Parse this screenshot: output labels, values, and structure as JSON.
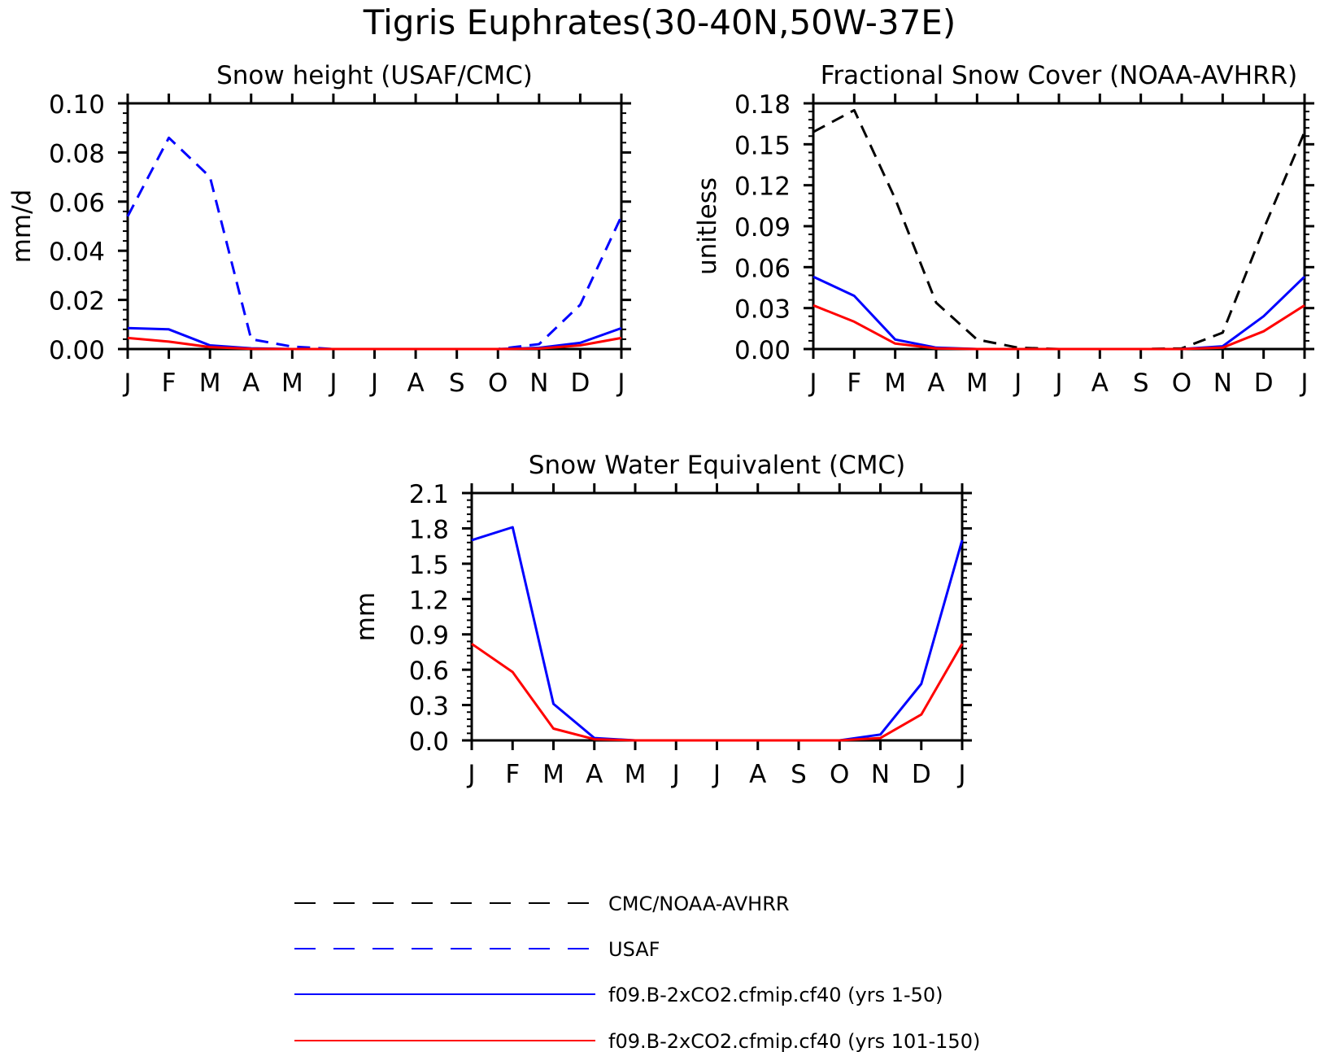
{
  "figure": {
    "title": "Tigris Euphrates(30-40N,50W-37E)"
  },
  "months": [
    "J",
    "F",
    "M",
    "A",
    "M",
    "J",
    "J",
    "A",
    "S",
    "O",
    "N",
    "D",
    "J"
  ],
  "colors": {
    "obs_cmc_avhrr": "#000000",
    "obs_usaf": "#0000ff",
    "model_early": "#0000ff",
    "model_late": "#ff0000"
  },
  "legend": [
    {
      "label": "CMC/NOAA-AVHRR",
      "color": "#000000",
      "dash": true
    },
    {
      "label": "USAF",
      "color": "#0000ff",
      "dash": true
    },
    {
      "label": "f09.B-2xCO2.cfmip.cf40 (yrs 1-50)",
      "color": "#0000ff",
      "dash": false
    },
    {
      "label": "f09.B-2xCO2.cfmip.cf40 (yrs 101-150)",
      "color": "#ff0000",
      "dash": false
    }
  ],
  "chart_data": [
    {
      "type": "line",
      "title": "Snow height (USAF/CMC)",
      "ylabel": "mm/d",
      "xlabel": "",
      "categories": [
        "J",
        "F",
        "M",
        "A",
        "M",
        "J",
        "J",
        "A",
        "S",
        "O",
        "N",
        "D",
        "J"
      ],
      "ylim": [
        0,
        0.1
      ],
      "yticks": [
        "0.00",
        "0.02",
        "0.04",
        "0.06",
        "0.08",
        "0.10"
      ],
      "series": [
        {
          "name": "USAF",
          "color": "#0000ff",
          "dash": true,
          "values": [
            0.054,
            0.086,
            0.07,
            0.004,
            0.001,
            0.0,
            0.0,
            0.0,
            0.0,
            0.0,
            0.002,
            0.018,
            0.054
          ]
        },
        {
          "name": "f09.B-2xCO2.cfmip.cf40 (yrs 1-50)",
          "color": "#0000ff",
          "dash": false,
          "values": [
            0.0085,
            0.008,
            0.0015,
            0.0003,
            0.0,
            0.0,
            0.0,
            0.0,
            0.0,
            0.0,
            0.0005,
            0.0025,
            0.0085
          ]
        },
        {
          "name": "f09.B-2xCO2.cfmip.cf40 (yrs 101-150)",
          "color": "#ff0000",
          "dash": false,
          "values": [
            0.0045,
            0.003,
            0.0008,
            0.0001,
            0.0,
            0.0,
            0.0,
            0.0,
            0.0,
            0.0,
            0.0002,
            0.0015,
            0.0045
          ]
        }
      ]
    },
    {
      "type": "line",
      "title": "Fractional Snow Cover (NOAA-AVHRR)",
      "ylabel": "unitless",
      "xlabel": "",
      "categories": [
        "J",
        "F",
        "M",
        "A",
        "M",
        "J",
        "J",
        "A",
        "S",
        "O",
        "N",
        "D",
        "J"
      ],
      "ylim": [
        0,
        0.18
      ],
      "yticks": [
        "0.00",
        "0.03",
        "0.06",
        "0.09",
        "0.12",
        "0.15",
        "0.18"
      ],
      "series": [
        {
          "name": "CMC/NOAA-AVHRR",
          "color": "#000000",
          "dash": true,
          "values": [
            0.159,
            0.175,
            0.11,
            0.034,
            0.007,
            0.001,
            0.0,
            0.0,
            0.0,
            0.0005,
            0.012,
            0.088,
            0.159
          ]
        },
        {
          "name": "f09.B-2xCO2.cfmip.cf40 (yrs 1-50)",
          "color": "#0000ff",
          "dash": false,
          "values": [
            0.053,
            0.039,
            0.007,
            0.001,
            0.0,
            0.0,
            0.0,
            0.0,
            0.0,
            0.0,
            0.002,
            0.024,
            0.053
          ]
        },
        {
          "name": "f09.B-2xCO2.cfmip.cf40 (yrs 101-150)",
          "color": "#ff0000",
          "dash": false,
          "values": [
            0.032,
            0.02,
            0.004,
            0.0005,
            0.0,
            0.0,
            0.0,
            0.0,
            0.0,
            0.0,
            0.001,
            0.013,
            0.032
          ]
        }
      ]
    },
    {
      "type": "line",
      "title": "Snow Water Equivalent (CMC)",
      "ylabel": "mm",
      "xlabel": "",
      "categories": [
        "J",
        "F",
        "M",
        "A",
        "M",
        "J",
        "J",
        "A",
        "S",
        "O",
        "N",
        "D",
        "J"
      ],
      "ylim": [
        0,
        2.1
      ],
      "yticks": [
        "0.0",
        "0.3",
        "0.6",
        "0.9",
        "1.2",
        "1.5",
        "1.8",
        "2.1"
      ],
      "series": [
        {
          "name": "f09.B-2xCO2.cfmip.cf40 (yrs 1-50)",
          "color": "#0000ff",
          "dash": false,
          "values": [
            1.7,
            1.81,
            0.31,
            0.02,
            0.0,
            0.0,
            0.0,
            0.0,
            0.0,
            0.0,
            0.05,
            0.48,
            1.7
          ]
        },
        {
          "name": "f09.B-2xCO2.cfmip.cf40 (yrs 101-150)",
          "color": "#ff0000",
          "dash": false,
          "values": [
            0.82,
            0.58,
            0.1,
            0.01,
            0.0,
            0.0,
            0.0,
            0.0,
            0.0,
            0.0,
            0.02,
            0.22,
            0.82
          ]
        }
      ]
    }
  ]
}
